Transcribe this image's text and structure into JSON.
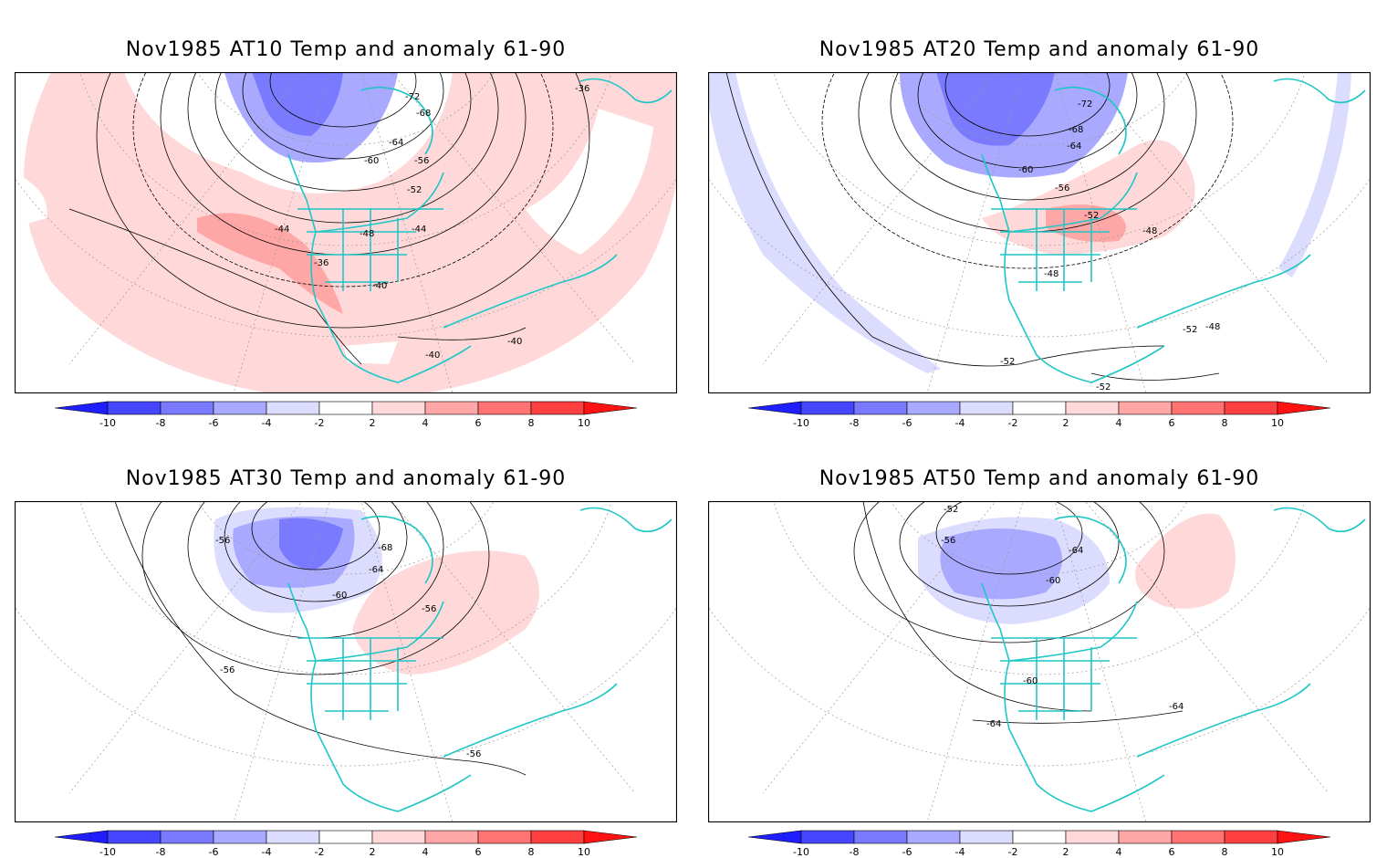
{
  "panels": [
    {
      "title": "Nov1985 AT10 Temp and anomaly 61-90",
      "level": "AT10",
      "contour_labels": [
        "-72",
        "-68",
        "-64",
        "-60",
        "-56",
        "-52",
        "-48",
        "-44",
        "-44",
        "-40",
        "-40",
        "-40",
        "-36",
        "-36"
      ],
      "anomaly": "mostly warm; strong cold (-6 to -8) over Greenland/Arctic Canada; warm (+4 to +6) over eastern Pacific / SW US"
    },
    {
      "title": "Nov1985 AT20 Temp and anomaly 61-90",
      "level": "AT20",
      "contour_labels": [
        "-72",
        "-68",
        "-64",
        "-60",
        "-56",
        "-52",
        "-52",
        "-52",
        "-52",
        "-48",
        "-48",
        "-48"
      ],
      "anomaly": "cold (-6 to -8) over Greenland/Arctic Canada; warm (+4) over SE United States"
    },
    {
      "title": "Nov1985 AT30 Temp and anomaly 61-90",
      "level": "AT30",
      "contour_labels": [
        "-68",
        "-64",
        "-60",
        "-56",
        "-56",
        "-56",
        "-56"
      ],
      "anomaly": "cold (-4 to -8) over Greenland/Arctic Canada; weak warm (+2) over eastern US / NW Atlantic"
    },
    {
      "title": "Nov1985 AT50 Temp and anomaly 61-90",
      "level": "AT50",
      "contour_labels": [
        "-64",
        "-64",
        "-64",
        "-60",
        "-60",
        "-56",
        "-52"
      ],
      "anomaly": "cold (-4 to -6) over Greenland/Arctic Canada; weak warm (+2) over North Atlantic"
    }
  ],
  "colorbar": {
    "labels": [
      "-10",
      "-8",
      "-6",
      "-4",
      "-2",
      "2",
      "4",
      "6",
      "8",
      "10"
    ],
    "colors": [
      "#1e1eff",
      "#4646ff",
      "#7a7aff",
      "#a9a9ff",
      "#dcdcff",
      "#ffffff",
      "#ffd9d9",
      "#ffa6a6",
      "#ff7373",
      "#ff4040",
      "#ff1212"
    ]
  },
  "colors": {
    "coast": "#1fc6c6",
    "contour": "#000000",
    "grid": "#9a9a9a"
  }
}
